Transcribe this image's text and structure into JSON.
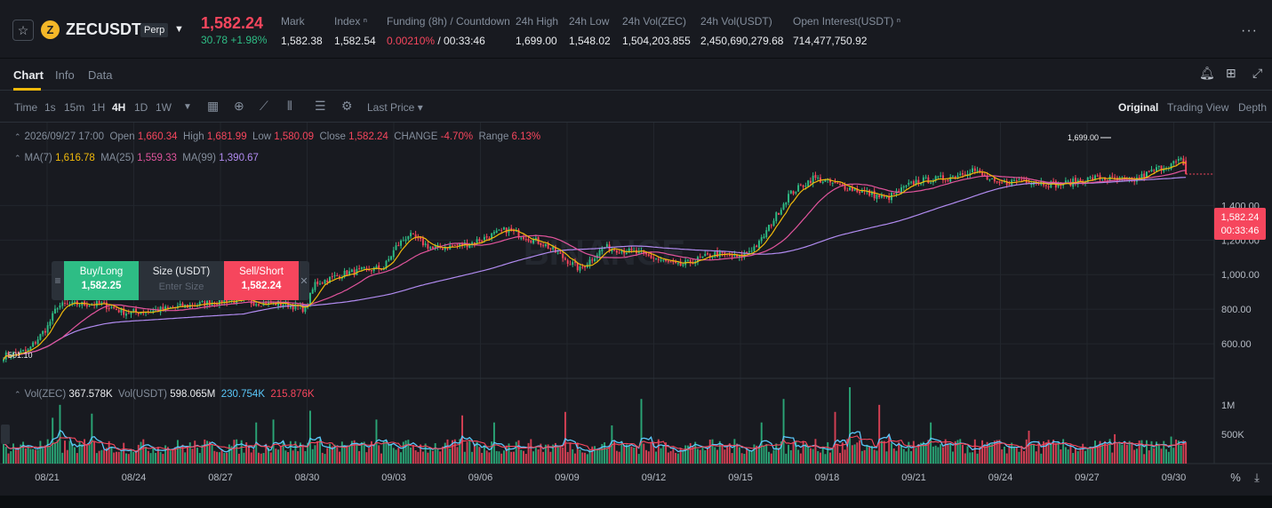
{
  "header": {
    "symbol": "ZECUSDT",
    "contract_type": "Perp",
    "last_price": "1,582.24",
    "change": "30.78 +1.98%",
    "stats": [
      {
        "label": "Mark",
        "value": "1,582.38"
      },
      {
        "label": "Index ⁿ",
        "value": "1,582.54"
      },
      {
        "label": "Funding (8h) / Countdown",
        "value_red": "0.00210%",
        "value": " / 00:33:46"
      },
      {
        "label": "24h High",
        "value": "1,699.00"
      },
      {
        "label": "24h Low",
        "value": "1,548.02"
      },
      {
        "label": "24h Vol(ZEC)",
        "value": "1,504,203.855"
      },
      {
        "label": "24h Vol(USDT)",
        "value": "2,450,690,279.68"
      },
      {
        "label": "Open Interest(USDT) ⁿ",
        "value": "714,477,750.92"
      }
    ],
    "star_icon": "☆",
    "coin_letter": "Z",
    "more_icon": "···"
  },
  "tabs": [
    "Chart",
    "Info",
    "Data"
  ],
  "toolbar": {
    "intervals": [
      "Time",
      "1s",
      "15m",
      "1H",
      "4H",
      "1D",
      "1W"
    ],
    "active_interval": "4H",
    "price_type": "Last Price ▾",
    "views": [
      "Original",
      "Trading View",
      "Depth"
    ]
  },
  "legend": {
    "date": "2026/09/27 17:00",
    "open_label": "Open",
    "open": "1,660.34",
    "high_label": "High",
    "high": "1,681.99",
    "low_label": "Low",
    "low": "1,580.09",
    "close_label": "Close",
    "close": "1,582.24",
    "change_label": "CHANGE",
    "change": "-4.70%",
    "range_label": "Range",
    "range": "6.13%",
    "ma7_label": "MA(7)",
    "ma7": "1,616.78",
    "ma25_label": "MA(25)",
    "ma25": "1,559.33",
    "ma99_label": "MA(99)",
    "ma99": "1,390.67",
    "vol_zec_label": "Vol(ZEC)",
    "vol_zec": "367.578K",
    "vol_usdt_label": "Vol(USDT)",
    "vol_usdt": "598.065M",
    "vol_ma1": "230.754K",
    "vol_ma2": "215.876K"
  },
  "order_widget": {
    "buy_label": "Buy/Long",
    "buy_price": "1,582.25",
    "size_label": "Size (USDT)",
    "size_placeholder": "Enter Size",
    "sell_label": "Sell/Short",
    "sell_price": "1,582.24"
  },
  "price_tag": {
    "price": "1,582.24",
    "countdown": "00:33:46"
  },
  "chart_data": {
    "type": "candlestick",
    "interval": "4H",
    "y_ticks": [
      "1,400.00",
      "1,200.00",
      "1,000.00",
      "800.00",
      "600.00"
    ],
    "y_tick_values": [
      1400,
      1200,
      1000,
      800,
      600
    ],
    "ylim": [
      400,
      1880
    ],
    "vol_ticks": [
      "1M",
      "500K"
    ],
    "vol_tick_values": [
      1000000,
      500000
    ],
    "vol_max": 1300000,
    "x_labels": [
      "08/21",
      "08/24",
      "08/27",
      "08/30",
      "09/03",
      "09/06",
      "09/09",
      "09/12",
      "09/15",
      "09/18",
      "09/21",
      "09/24",
      "09/27",
      "09/30"
    ],
    "max_marker": "1,699.00",
    "min_marker": "501.10",
    "watermark": "BINANCE",
    "price_anchors": [
      [
        0,
        530
      ],
      [
        10,
        560
      ],
      [
        18,
        700
      ],
      [
        22,
        820
      ],
      [
        30,
        830
      ],
      [
        40,
        830
      ],
      [
        50,
        780
      ],
      [
        60,
        790
      ],
      [
        75,
        820
      ],
      [
        90,
        850
      ],
      [
        115,
        830
      ],
      [
        123,
        800
      ],
      [
        127,
        950
      ],
      [
        140,
        1010
      ],
      [
        155,
        1040
      ],
      [
        160,
        1160
      ],
      [
        165,
        1230
      ],
      [
        175,
        1150
      ],
      [
        190,
        1180
      ],
      [
        205,
        1260
      ],
      [
        220,
        1180
      ],
      [
        235,
        1030
      ],
      [
        245,
        1160
      ],
      [
        260,
        1120
      ],
      [
        275,
        1050
      ],
      [
        290,
        1120
      ],
      [
        300,
        1100
      ],
      [
        308,
        1180
      ],
      [
        320,
        1460
      ],
      [
        330,
        1560
      ],
      [
        345,
        1500
      ],
      [
        360,
        1440
      ],
      [
        372,
        1540
      ],
      [
        385,
        1560
      ],
      [
        395,
        1610
      ],
      [
        405,
        1520
      ],
      [
        415,
        1550
      ],
      [
        430,
        1520
      ],
      [
        445,
        1560
      ],
      [
        460,
        1540
      ],
      [
        470,
        1610
      ],
      [
        480,
        1660
      ],
      [
        482,
        1582
      ]
    ],
    "vol_spikes": {
      "20": 780000,
      "23": 1000000,
      "36": 850000,
      "103": 700000,
      "110": 750000,
      "125": 900000,
      "152": 750000,
      "187": 820000,
      "200": 700000,
      "229": 880000,
      "248": 650000,
      "260": 1100000,
      "309": 700000,
      "318": 1100000,
      "339": 880000,
      "345": 1300000,
      "357": 1000000,
      "361": 500000,
      "378": 700000,
      "418": 560000,
      "453": 500000,
      "476": 460000,
      "482": 367578
    }
  }
}
